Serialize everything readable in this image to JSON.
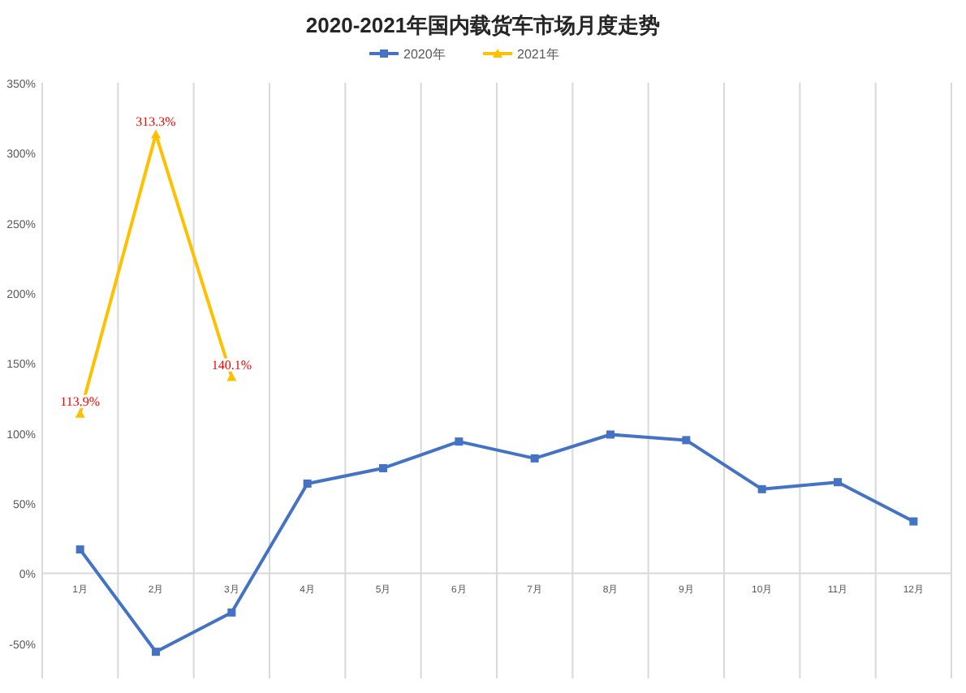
{
  "chart_data": {
    "type": "line",
    "title": "2020-2021年国内载货车市场月度走势",
    "categories": [
      "1月",
      "2月",
      "3月",
      "4月",
      "5月",
      "6月",
      "7月",
      "8月",
      "9月",
      "10月",
      "11月",
      "12月"
    ],
    "series": [
      {
        "name": "2020年",
        "color": "#4472c4",
        "marker": "square",
        "values": [
          17,
          -56,
          -28,
          64,
          75,
          94,
          82,
          99,
          95,
          60,
          65,
          37
        ]
      },
      {
        "name": "2021年",
        "color": "#ffc000",
        "marker": "triangle",
        "values": [
          113.9,
          313.3,
          140.1,
          null,
          null,
          null,
          null,
          null,
          null,
          null,
          null,
          null
        ],
        "value_labels": [
          "113.9%",
          "313.3%",
          "140.1%",
          null,
          null,
          null,
          null,
          null,
          null,
          null,
          null,
          null
        ]
      }
    ],
    "ylim": [
      -75,
      350
    ],
    "yticks": [
      {
        "value": -50,
        "label": "-50%"
      },
      {
        "value": 0,
        "label": "0%"
      },
      {
        "value": 50,
        "label": "50%"
      },
      {
        "value": 100,
        "label": "100%"
      },
      {
        "value": 150,
        "label": "150%"
      },
      {
        "value": 200,
        "label": "200%"
      },
      {
        "value": 250,
        "label": "250%"
      },
      {
        "value": 300,
        "label": "300%"
      },
      {
        "value": 350,
        "label": "350%"
      }
    ],
    "grid": "x",
    "legend": "top",
    "line_style": "solid"
  }
}
